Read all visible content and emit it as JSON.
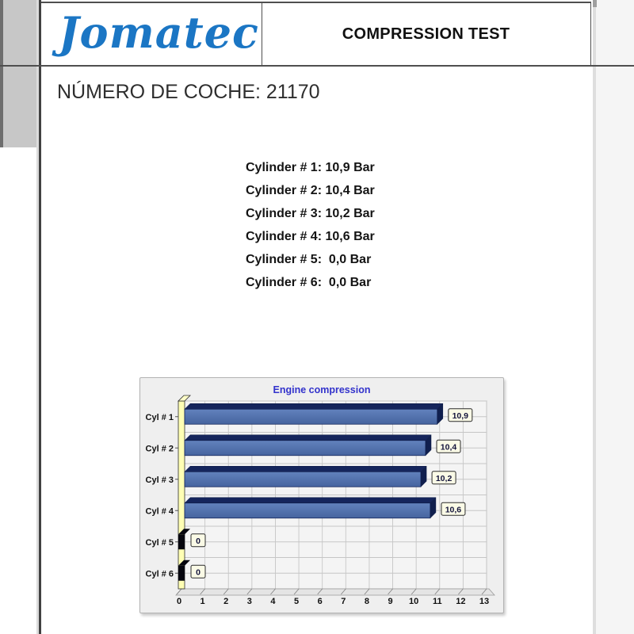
{
  "header": {
    "logo_text": "Jomatec",
    "title": "COMPRESSION TEST"
  },
  "document": {
    "car_number_line": "NÚMERO DE COCHE: 21170"
  },
  "cylinders": {
    "lines": [
      "Cylinder # 1: 10,9 Bar",
      "Cylinder # 2: 10,4 Bar",
      "Cylinder # 3: 10,2 Bar",
      "Cylinder # 4: 10,6 Bar",
      "Cylinder # 5:  0,0 Bar",
      "Cylinder # 6:  0,0 Bar"
    ]
  },
  "chart_data": {
    "type": "bar",
    "orientation": "horizontal",
    "title": "Engine compression",
    "categories": [
      "Cyl # 1",
      "Cyl # 2",
      "Cyl # 3",
      "Cyl # 4",
      "Cyl # 5",
      "Cyl # 6"
    ],
    "values": [
      10.9,
      10.4,
      10.2,
      10.6,
      0,
      0
    ],
    "value_labels": [
      "10,9",
      "10,4",
      "10,2",
      "10,6",
      "0",
      "0"
    ],
    "unit": "Bar",
    "xlim": [
      0,
      13
    ],
    "x_ticks": [
      0,
      1,
      2,
      3,
      4,
      5,
      6,
      7,
      8,
      9,
      10,
      11,
      12,
      13
    ],
    "grid": true,
    "style": "3d-horizontal-bars",
    "colors": {
      "title": "#3333cc",
      "bar_front": "#46649f",
      "bar_front_light": "#6282bd",
      "bar_dark": "#15255c",
      "bar_end": "#101f4e",
      "zero_cap": "#06060e",
      "wall_yellow": "#ffffb4",
      "wall_cap": "#ffffc9",
      "value_box_bg": "#fafae6",
      "value_box_border": "#2b2b2b",
      "grid_line": "#c6c6c6",
      "plot_bg": "#f4f4f4",
      "panel_bg": "#efefef",
      "floor": "#e4e4e4"
    }
  },
  "colors": {
    "logo_blue": "#1b76c4",
    "text": "#141414"
  }
}
